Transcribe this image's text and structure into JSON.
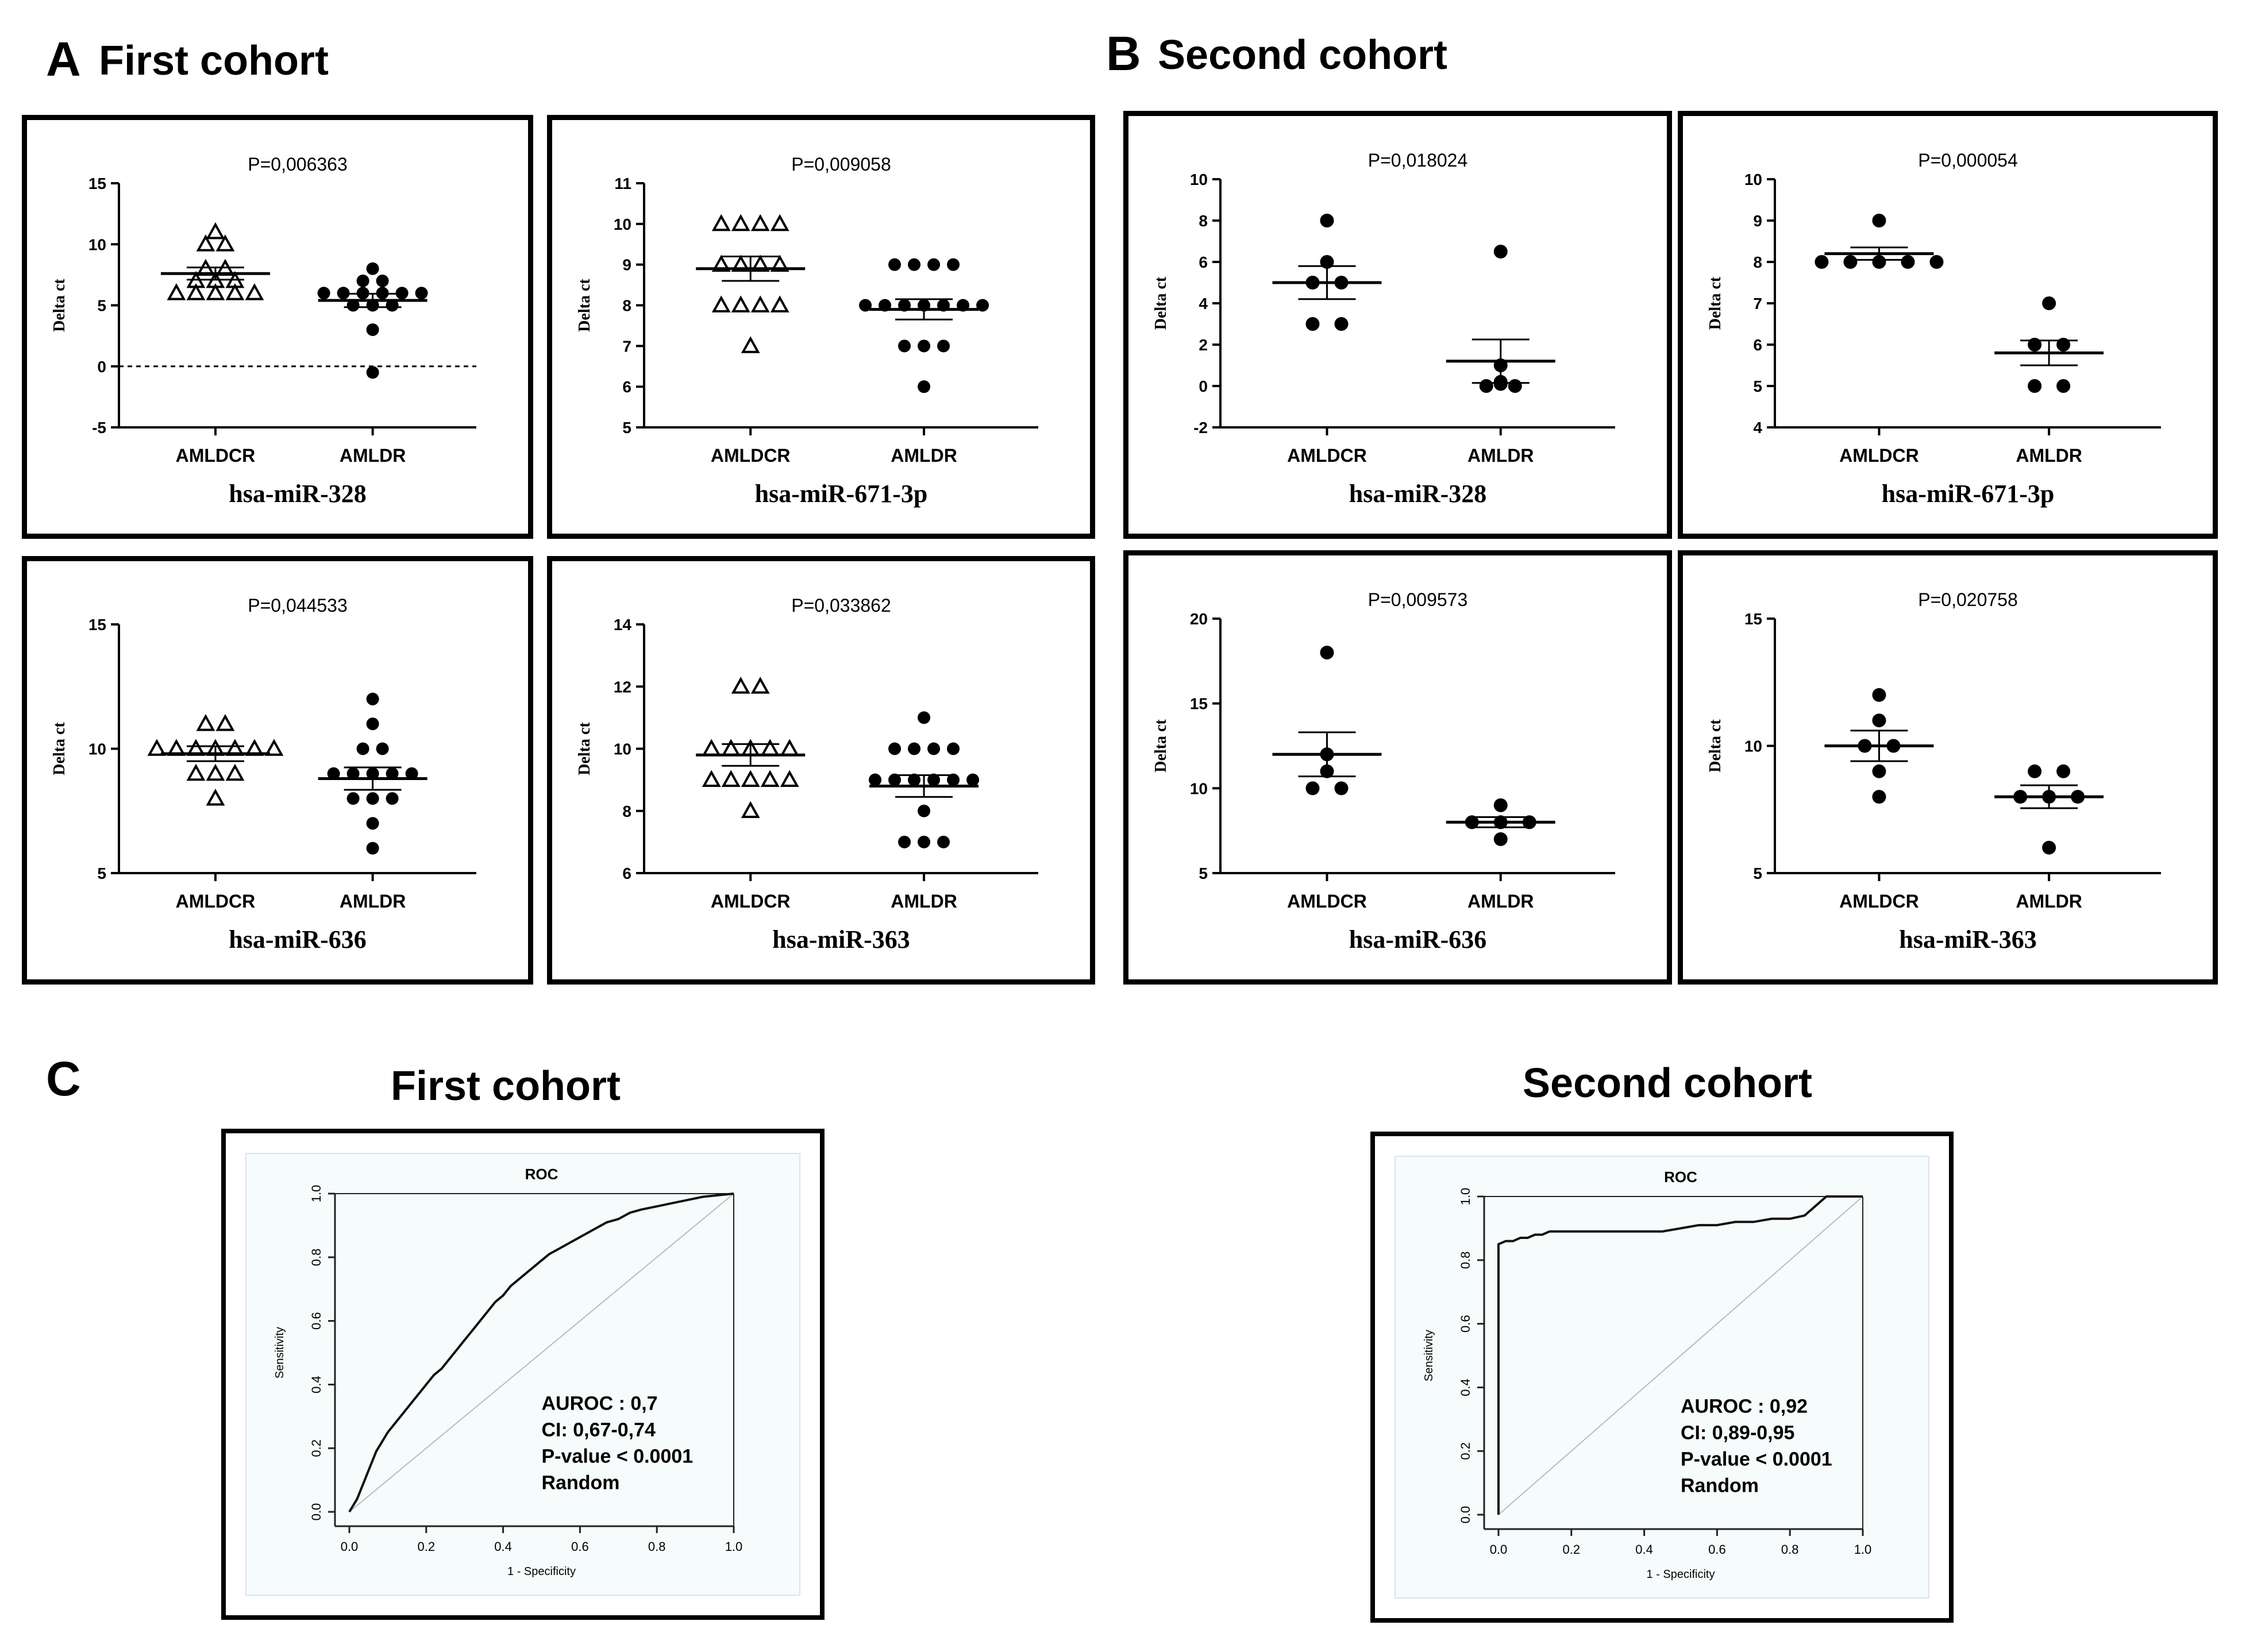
{
  "labels": {
    "panel_a": "A",
    "panel_b": "B",
    "panel_c": "C",
    "first_cohort": "First cohort",
    "second_cohort": "Second cohort"
  },
  "chart_data": [
    {
      "id": "a1",
      "type": "scatter",
      "cohort": "First cohort",
      "gene": "hsa-miR-328",
      "pvalue": "P=0,006363",
      "ylabel": "Delta ct",
      "ylim": [
        -5,
        15
      ],
      "yticks": [
        -5,
        0,
        5,
        10,
        15
      ],
      "dashed_zero": true,
      "marker1": "triangle",
      "marker2": "circle",
      "groups": [
        "AMLDCR",
        "AMLDR"
      ],
      "values1": [
        11,
        10,
        10,
        8,
        8,
        7,
        7,
        7,
        6,
        6,
        6,
        6,
        6
      ],
      "values2": [
        8,
        7,
        7,
        6,
        6,
        6,
        6,
        6,
        6,
        5,
        5,
        5,
        3,
        -0.5
      ],
      "mean1": 7.6,
      "sem1": 0.5,
      "mean2": 5.4,
      "sem2": 0.55
    },
    {
      "id": "a2",
      "type": "scatter",
      "cohort": "First cohort",
      "gene": "hsa-miR-671-3p",
      "pvalue": "P=0,009058",
      "ylabel": "Delta ct",
      "ylim": [
        5,
        11
      ],
      "yticks": [
        5,
        6,
        7,
        8,
        9,
        10,
        11
      ],
      "dashed_zero": false,
      "marker1": "triangle",
      "marker2": "circle",
      "groups": [
        "AMLDCR",
        "AMLDR"
      ],
      "values1": [
        10,
        10,
        10,
        10,
        9,
        9,
        9,
        9,
        8,
        8,
        8,
        8,
        7
      ],
      "values2": [
        9,
        9,
        9,
        9,
        8,
        8,
        8,
        8,
        8,
        8,
        8,
        7,
        7,
        7,
        6
      ],
      "mean1": 8.9,
      "sem1": 0.3,
      "mean2": 7.9,
      "sem2": 0.25
    },
    {
      "id": "a3",
      "type": "scatter",
      "cohort": "First cohort",
      "gene": "hsa-miR-636",
      "pvalue": "P=0,044533",
      "ylabel": "Delta ct",
      "ylim": [
        5,
        15
      ],
      "yticks": [
        5,
        10,
        15
      ],
      "dashed_zero": false,
      "marker1": "triangle",
      "marker2": "circle",
      "groups": [
        "AMLDCR",
        "AMLDR"
      ],
      "values1": [
        11,
        11,
        10,
        10,
        10,
        10,
        10,
        10,
        10,
        9,
        9,
        9,
        8
      ],
      "values2": [
        12,
        11,
        10,
        10,
        9,
        9,
        9,
        9,
        9,
        8,
        8,
        8,
        7,
        6
      ],
      "mean1": 9.8,
      "sem1": 0.3,
      "mean2": 8.8,
      "sem2": 0.45
    },
    {
      "id": "a4",
      "type": "scatter",
      "cohort": "First cohort",
      "gene": "hsa-miR-363",
      "pvalue": "P=0,033862",
      "ylabel": "Delta ct",
      "ylim": [
        6,
        14
      ],
      "yticks": [
        6,
        8,
        10,
        12,
        14
      ],
      "dashed_zero": false,
      "marker1": "triangle",
      "marker2": "circle",
      "groups": [
        "AMLDCR",
        "AMLDR"
      ],
      "values1": [
        12,
        12,
        10,
        10,
        10,
        10,
        10,
        9,
        9,
        9,
        9,
        9,
        8
      ],
      "values2": [
        11,
        10,
        10,
        10,
        10,
        9,
        9,
        9,
        9,
        9,
        9,
        8,
        7,
        7,
        7
      ],
      "mean1": 9.8,
      "sem1": 0.35,
      "mean2": 8.8,
      "sem2": 0.35
    },
    {
      "id": "b1",
      "type": "scatter",
      "cohort": "Second cohort",
      "gene": "hsa-miR-328",
      "pvalue": "P=0,018024",
      "ylabel": "Delta ct",
      "ylim": [
        -2,
        10
      ],
      "yticks": [
        -2,
        0,
        2,
        4,
        6,
        8,
        10
      ],
      "dashed_zero": false,
      "marker1": "circle",
      "marker2": "circle",
      "groups": [
        "AMLDCR",
        "AMLDR"
      ],
      "values1": [
        8,
        6,
        5,
        5,
        3,
        3
      ],
      "values2": [
        6.5,
        1,
        0.2,
        0.1,
        0,
        0
      ],
      "mean1": 5.0,
      "sem1": 0.8,
      "mean2": 1.2,
      "sem2": 1.05
    },
    {
      "id": "b2",
      "type": "scatter",
      "cohort": "Second cohort",
      "gene": "hsa-miR-671-3p",
      "pvalue": "P=0,000054",
      "ylabel": "Delta ct",
      "ylim": [
        4,
        10
      ],
      "yticks": [
        4,
        5,
        6,
        7,
        8,
        9,
        10
      ],
      "dashed_zero": false,
      "marker1": "circle",
      "marker2": "circle",
      "groups": [
        "AMLDCR",
        "AMLDR"
      ],
      "values1": [
        9,
        8,
        8,
        8,
        8,
        8
      ],
      "values2": [
        7,
        6,
        6,
        5,
        5
      ],
      "mean1": 8.2,
      "sem1": 0.15,
      "mean2": 5.8,
      "sem2": 0.3
    },
    {
      "id": "b3",
      "type": "scatter",
      "cohort": "Second cohort",
      "gene": "hsa-miR-636",
      "pvalue": "P=0,009573",
      "ylabel": "Delta ct",
      "ylim": [
        5,
        20
      ],
      "yticks": [
        5,
        10,
        15,
        20
      ],
      "dashed_zero": false,
      "marker1": "circle",
      "marker2": "circle",
      "groups": [
        "AMLDCR",
        "AMLDR"
      ],
      "values1": [
        18,
        12,
        11,
        10,
        10
      ],
      "values2": [
        9,
        8,
        8,
        8,
        7
      ],
      "mean1": 12.0,
      "sem1": 1.3,
      "mean2": 8.0,
      "sem2": 0.3
    },
    {
      "id": "b4",
      "type": "scatter",
      "cohort": "Second cohort",
      "gene": "hsa-miR-363",
      "pvalue": "P=0,020758",
      "ylabel": "Delta ct",
      "ylim": [
        5,
        15
      ],
      "yticks": [
        5,
        10,
        15
      ],
      "dashed_zero": false,
      "marker1": "circle",
      "marker2": "circle",
      "groups": [
        "AMLDCR",
        "AMLDR"
      ],
      "values1": [
        12,
        11,
        10,
        10,
        9,
        8
      ],
      "values2": [
        9,
        9,
        8,
        8,
        8,
        6
      ],
      "mean1": 10.0,
      "sem1": 0.6,
      "mean2": 8.0,
      "sem2": 0.45
    },
    {
      "id": "c1",
      "type": "line",
      "cohort": "First cohort",
      "title": "ROC",
      "xlabel": "1 - Specificity",
      "ylabel": "Sensitivity",
      "xlim": [
        0,
        1
      ],
      "ylim": [
        0,
        1
      ],
      "ticks": [
        "0.0",
        "0.2",
        "0.4",
        "0.6",
        "0.8",
        "1.0"
      ],
      "annotation": [
        "AUROC : 0,7",
        "CI: 0,67-0,74",
        "P-value < 0.0001",
        "Random"
      ],
      "curve_x": [
        0,
        0.01,
        0.02,
        0.03,
        0.04,
        0.05,
        0.06,
        0.07,
        0.08,
        0.1,
        0.12,
        0.14,
        0.16,
        0.18,
        0.2,
        0.22,
        0.24,
        0.26,
        0.28,
        0.3,
        0.32,
        0.34,
        0.36,
        0.38,
        0.4,
        0.42,
        0.44,
        0.46,
        0.48,
        0.5,
        0.52,
        0.55,
        0.58,
        0.61,
        0.64,
        0.67,
        0.7,
        0.73,
        0.76,
        0.8,
        0.84,
        0.88,
        0.92,
        0.96,
        1.0
      ],
      "curve_y": [
        0,
        0.02,
        0.04,
        0.07,
        0.1,
        0.13,
        0.16,
        0.19,
        0.21,
        0.25,
        0.28,
        0.31,
        0.34,
        0.37,
        0.4,
        0.43,
        0.45,
        0.48,
        0.51,
        0.54,
        0.57,
        0.6,
        0.63,
        0.66,
        0.68,
        0.71,
        0.73,
        0.75,
        0.77,
        0.79,
        0.81,
        0.83,
        0.85,
        0.87,
        0.89,
        0.91,
        0.92,
        0.94,
        0.95,
        0.96,
        0.97,
        0.98,
        0.99,
        0.995,
        1.0
      ]
    },
    {
      "id": "c2",
      "type": "line",
      "cohort": "Second cohort",
      "title": "ROC",
      "xlabel": "1 - Specificity",
      "ylabel": "Sensitivity",
      "xlim": [
        0,
        1
      ],
      "ylim": [
        0,
        1
      ],
      "ticks": [
        "0.0",
        "0.2",
        "0.4",
        "0.6",
        "0.8",
        "1.0"
      ],
      "annotation": [
        "AUROC : 0,92",
        "CI: 0,89-0,95",
        "P-value < 0.0001",
        "Random"
      ],
      "curve_x": [
        0,
        0,
        0.02,
        0.04,
        0.06,
        0.08,
        0.1,
        0.12,
        0.14,
        0.16,
        0.2,
        0.3,
        0.4,
        0.45,
        0.5,
        0.55,
        0.6,
        0.65,
        0.7,
        0.75,
        0.8,
        0.84,
        0.86,
        0.88,
        0.9,
        1.0
      ],
      "curve_y": [
        0,
        0.85,
        0.86,
        0.86,
        0.87,
        0.87,
        0.88,
        0.88,
        0.89,
        0.89,
        0.89,
        0.89,
        0.89,
        0.89,
        0.9,
        0.91,
        0.91,
        0.92,
        0.92,
        0.93,
        0.93,
        0.94,
        0.96,
        0.98,
        1.0,
        1.0
      ]
    }
  ]
}
